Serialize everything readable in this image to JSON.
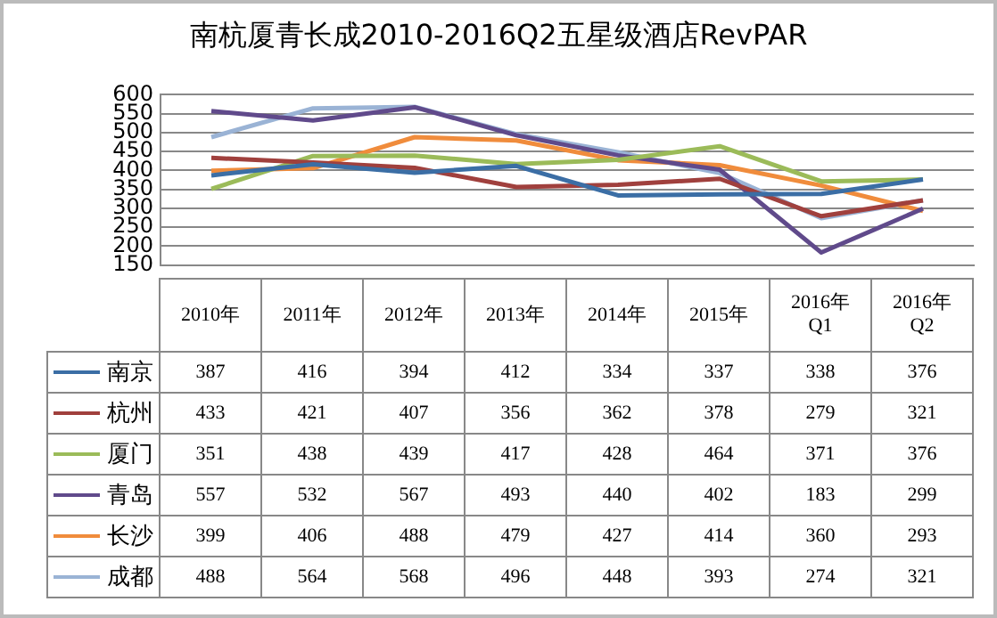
{
  "chart_data": {
    "type": "line",
    "title": "南杭厦青长成2010-2016Q2五星级酒店RevPAR",
    "categories": [
      "2010年",
      "2011年",
      "2012年",
      "2013年",
      "2014年",
      "2015年",
      "2016年 Q1",
      "2016年 Q2"
    ],
    "series": [
      {
        "name": "南京",
        "color": "#3b6ea5",
        "values": [
          387,
          416,
          394,
          412,
          334,
          337,
          338,
          376
        ]
      },
      {
        "name": "杭州",
        "color": "#a0403d",
        "values": [
          433,
          421,
          407,
          356,
          362,
          378,
          279,
          321
        ]
      },
      {
        "name": "厦门",
        "color": "#9bbb59",
        "values": [
          351,
          438,
          439,
          417,
          428,
          464,
          371,
          376
        ]
      },
      {
        "name": "青岛",
        "color": "#604a8b",
        "values": [
          557,
          532,
          567,
          493,
          440,
          402,
          183,
          299
        ]
      },
      {
        "name": "长沙",
        "color": "#f08c3c",
        "values": [
          399,
          406,
          488,
          479,
          427,
          414,
          360,
          293
        ]
      },
      {
        "name": "成都",
        "color": "#9ab3d5",
        "values": [
          488,
          564,
          568,
          496,
          448,
          393,
          274,
          321
        ]
      }
    ],
    "ylim": [
      150,
      600
    ],
    "yticks": [
      150,
      200,
      250,
      300,
      350,
      400,
      450,
      500,
      550,
      600
    ],
    "grid": "y",
    "marker": "none",
    "line_style": "solid",
    "legend": "bottom",
    "data_labels": true
  }
}
